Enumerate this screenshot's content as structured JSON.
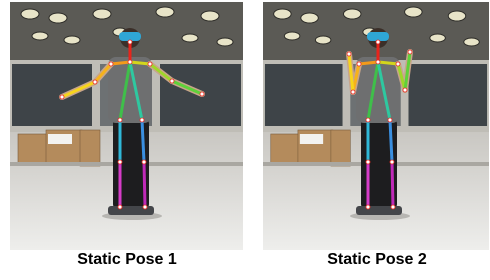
{
  "figure": {
    "captions": [
      "Static Pose 1",
      "Static Pose 2"
    ]
  }
}
